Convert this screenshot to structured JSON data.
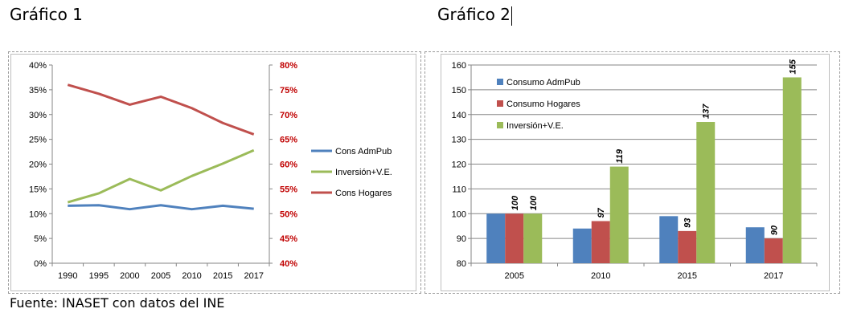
{
  "headings": {
    "chart1": "Gráfico 1",
    "chart2": "Gráfico 2"
  },
  "footer": "Fuente: INASET con datos del INE",
  "chart_data": [
    {
      "type": "line",
      "title": "",
      "x": [
        "1990",
        "1995",
        "2000",
        "2005",
        "2010",
        "2015",
        "2017"
      ],
      "y_left": {
        "ylim": [
          0,
          40
        ],
        "ticks": [
          "0%",
          "5%",
          "10%",
          "15%",
          "20%",
          "25%",
          "30%",
          "35%",
          "40%"
        ]
      },
      "y_right": {
        "ylim": [
          40,
          80
        ],
        "ticks": [
          "40%",
          "45%",
          "50%",
          "55%",
          "60%",
          "65%",
          "70%",
          "75%",
          "80%"
        ],
        "color": "#c00000"
      },
      "series": [
        {
          "name": "Cons AdmPub",
          "axis": "left",
          "color": "#4f81bd",
          "values": [
            11.6,
            11.7,
            10.9,
            11.7,
            10.9,
            11.6,
            11.0
          ]
        },
        {
          "name": "Inversión+V.E.",
          "axis": "left",
          "color": "#9bbb59",
          "values": [
            12.3,
            14.1,
            17.0,
            14.7,
            17.6,
            20.1,
            22.8
          ]
        },
        {
          "name": "Cons Hogares",
          "axis": "right",
          "color": "#c0504d",
          "values": [
            76.0,
            74.2,
            72.0,
            73.6,
            71.3,
            68.3,
            66.0
          ]
        }
      ],
      "grid": false,
      "legend": "right"
    },
    {
      "type": "bar",
      "title": "",
      "categories": [
        "2005",
        "2010",
        "2015",
        "2017"
      ],
      "ylim": [
        80,
        160
      ],
      "yticks": [
        "80",
        "90",
        "100",
        "110",
        "120",
        "130",
        "140",
        "150",
        "160"
      ],
      "series": [
        {
          "name": "Consumo AdmPub",
          "color": "#4f81bd",
          "values": [
            100,
            94,
            99,
            94.5
          ],
          "labels": [
            "",
            "",
            "",
            ""
          ]
        },
        {
          "name": "Consumo Hogares",
          "color": "#c0504d",
          "values": [
            100,
            97,
            93,
            90
          ],
          "labels": [
            "100",
            "97",
            "93",
            "90"
          ]
        },
        {
          "name": "Inversión+V.E.",
          "color": "#9bbb59",
          "values": [
            100,
            119,
            137,
            155
          ],
          "labels": [
            "100",
            "119",
            "137",
            "155"
          ]
        }
      ],
      "grid": true,
      "legend": "top-left"
    }
  ]
}
